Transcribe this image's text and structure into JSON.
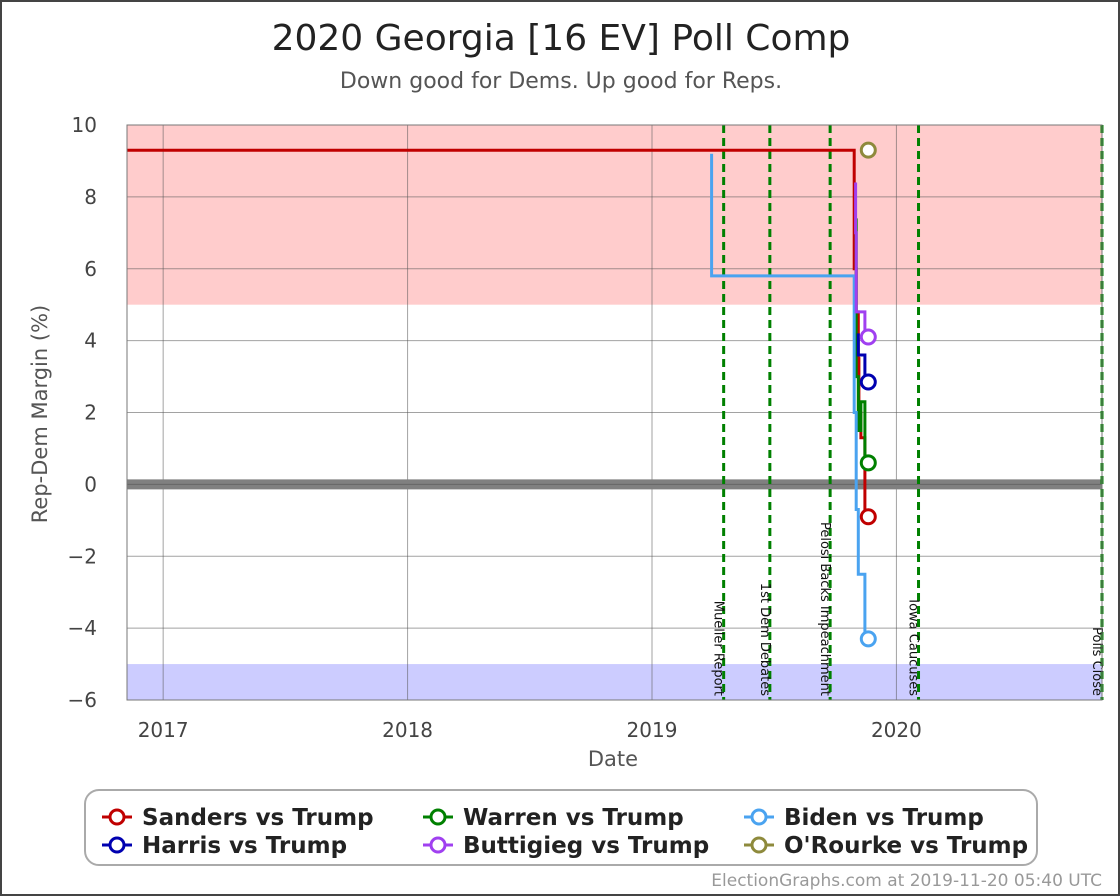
{
  "chart_data": {
    "type": "line",
    "title": "2020 Georgia [16 EV] Poll Comp",
    "subtitle": "Down good for Dems. Up good for Reps.",
    "xlabel": "Date",
    "ylabel": "Rep-Dem Margin (%)",
    "ylim": [
      -6,
      10
    ],
    "xlim": [
      "2016-11-08",
      "2020-11-03"
    ],
    "x_ticks": [
      "2017",
      "2018",
      "2019",
      "2020"
    ],
    "y_ticks": [
      "10",
      "8",
      "6",
      "4",
      "2",
      "0",
      "−2",
      "−4",
      "−6"
    ],
    "grid": true,
    "bands": [
      {
        "name": "rep-strong-band",
        "from": 5,
        "to": 10,
        "color": "#ffcccc"
      },
      {
        "name": "dem-strong-band",
        "from": -6,
        "to": -5,
        "color": "#ccccff"
      }
    ],
    "zero_line_color": "#808080",
    "events": [
      {
        "date": "2019-04-18",
        "label": "Mueller Report"
      },
      {
        "date": "2019-06-26",
        "label": "1st Dem Debates"
      },
      {
        "date": "2019-09-24",
        "label": "Pelosi Backs Impeachment"
      },
      {
        "date": "2020-02-03",
        "label": "Iowa Caucuses"
      },
      {
        "date": "2020-11-03",
        "label": "Polls Close"
      }
    ],
    "event_color": "#008000",
    "series": [
      {
        "name": "Sanders vs Trump",
        "color": "#c00000",
        "points": [
          [
            "2016-11-08",
            9.3
          ],
          [
            "2019-10-30",
            9.3
          ],
          [
            "2019-10-30",
            6.0
          ],
          [
            "2019-11-02",
            6.0
          ],
          [
            "2019-11-02",
            4.8
          ],
          [
            "2019-11-05",
            4.8
          ],
          [
            "2019-11-05",
            3.5
          ],
          [
            "2019-11-06",
            3.5
          ],
          [
            "2019-11-06",
            2.0
          ],
          [
            "2019-11-09",
            2.0
          ],
          [
            "2019-11-09",
            1.3
          ],
          [
            "2019-11-15",
            1.3
          ],
          [
            "2019-11-15",
            -0.9
          ],
          [
            "2019-11-20",
            -0.9
          ]
        ]
      },
      {
        "name": "Warren vs Trump",
        "color": "#008000",
        "points": [
          [
            "2019-11-02",
            7.4
          ],
          [
            "2019-11-02",
            3.0
          ],
          [
            "2019-11-05",
            3.0
          ],
          [
            "2019-11-05",
            1.5
          ],
          [
            "2019-11-09",
            1.5
          ],
          [
            "2019-11-09",
            2.3
          ],
          [
            "2019-11-15",
            2.3
          ],
          [
            "2019-11-15",
            0.6
          ],
          [
            "2019-11-20",
            0.6
          ]
        ]
      },
      {
        "name": "Biden vs Trump",
        "color": "#4aa3f0",
        "points": [
          [
            "2019-03-31",
            9.2
          ],
          [
            "2019-03-31",
            5.8
          ],
          [
            "2019-10-30",
            5.8
          ],
          [
            "2019-10-30",
            2.0
          ],
          [
            "2019-11-02",
            2.0
          ],
          [
            "2019-11-02",
            -0.7
          ],
          [
            "2019-11-05",
            -0.7
          ],
          [
            "2019-11-05",
            -2.5
          ],
          [
            "2019-11-15",
            -2.5
          ],
          [
            "2019-11-15",
            -4.3
          ],
          [
            "2019-11-20",
            -4.3
          ]
        ]
      },
      {
        "name": "Harris vs Trump",
        "color": "#0000b0",
        "points": [
          [
            "2019-11-05",
            4.2
          ],
          [
            "2019-11-05",
            3.6
          ],
          [
            "2019-11-15",
            3.6
          ],
          [
            "2019-11-15",
            2.85
          ],
          [
            "2019-11-20",
            2.85
          ]
        ]
      },
      {
        "name": "Buttigieg vs Trump",
        "color": "#a040f0",
        "points": [
          [
            "2019-11-01",
            8.4
          ],
          [
            "2019-11-01",
            7.0
          ],
          [
            "2019-11-02",
            7.0
          ],
          [
            "2019-11-02",
            4.8
          ],
          [
            "2019-11-15",
            4.8
          ],
          [
            "2019-11-15",
            4.1
          ],
          [
            "2019-11-20",
            4.1
          ]
        ]
      },
      {
        "name": "O'Rourke vs Trump",
        "color": "#8e8a3c",
        "points": [
          [
            "2019-11-20",
            9.3
          ]
        ]
      }
    ]
  },
  "footer": "ElectionGraphs.com at 2019-11-20 05:40 UTC"
}
